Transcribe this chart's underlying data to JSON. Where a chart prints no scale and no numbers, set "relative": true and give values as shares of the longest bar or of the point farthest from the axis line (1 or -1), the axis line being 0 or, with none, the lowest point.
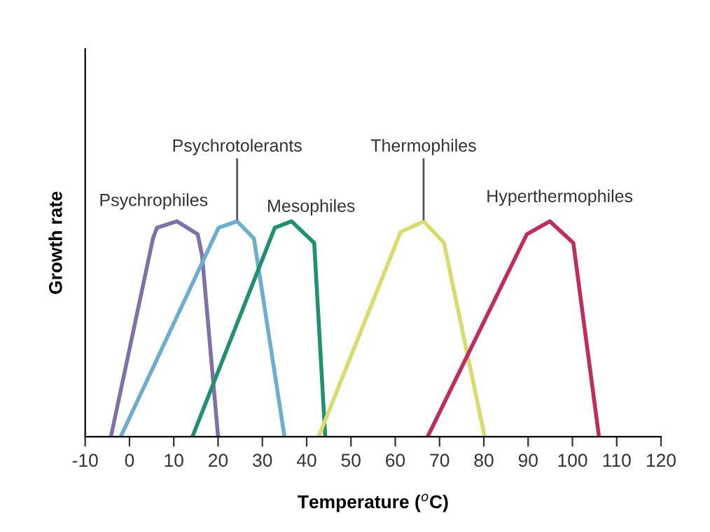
{
  "chart_data": {
    "type": "line",
    "relative": true,
    "xlabel": "Temperature ($^{o}$C)",
    "ylabel": "Growth rate",
    "xlim": [
      -10,
      120
    ],
    "xticks": [
      -10,
      0,
      10,
      20,
      30,
      40,
      50,
      60,
      70,
      80,
      90,
      100,
      110,
      120
    ],
    "grid": false,
    "legend": false,
    "line_style": "solid",
    "series": [
      {
        "name": "Psychrophiles",
        "color": "#8070a8",
        "x": [
          -4.2,
          5.3,
          6.2,
          10.7,
          15.4,
          16.4,
          20
        ],
        "values": [
          0,
          0.92,
          0.97,
          1,
          0.94,
          0.84,
          0
        ]
      },
      {
        "name": "Psychrotolerants",
        "color": "#6aaed0",
        "x": [
          -2,
          20.1,
          24.3,
          28.1,
          35
        ],
        "values": [
          0,
          0.97,
          1,
          0.92,
          0
        ]
      },
      {
        "name": "Mesophiles",
        "color": "#1e9170",
        "x": [
          14.2,
          32.8,
          36.6,
          41.7,
          44.2
        ],
        "values": [
          0,
          0.97,
          1,
          0.9,
          0
        ]
      },
      {
        "name": "Thermophiles",
        "color": "#d8dc6a",
        "x": [
          42.7,
          61.2,
          66.4,
          71,
          80.2
        ],
        "values": [
          0,
          0.95,
          1,
          0.9,
          0
        ]
      },
      {
        "name": "Hyperthermophiles",
        "color": "#c42a5c",
        "x": [
          67.3,
          89.7,
          94.9,
          100.2,
          106
        ],
        "values": [
          0,
          0.94,
          1,
          0.9,
          0
        ]
      }
    ]
  }
}
